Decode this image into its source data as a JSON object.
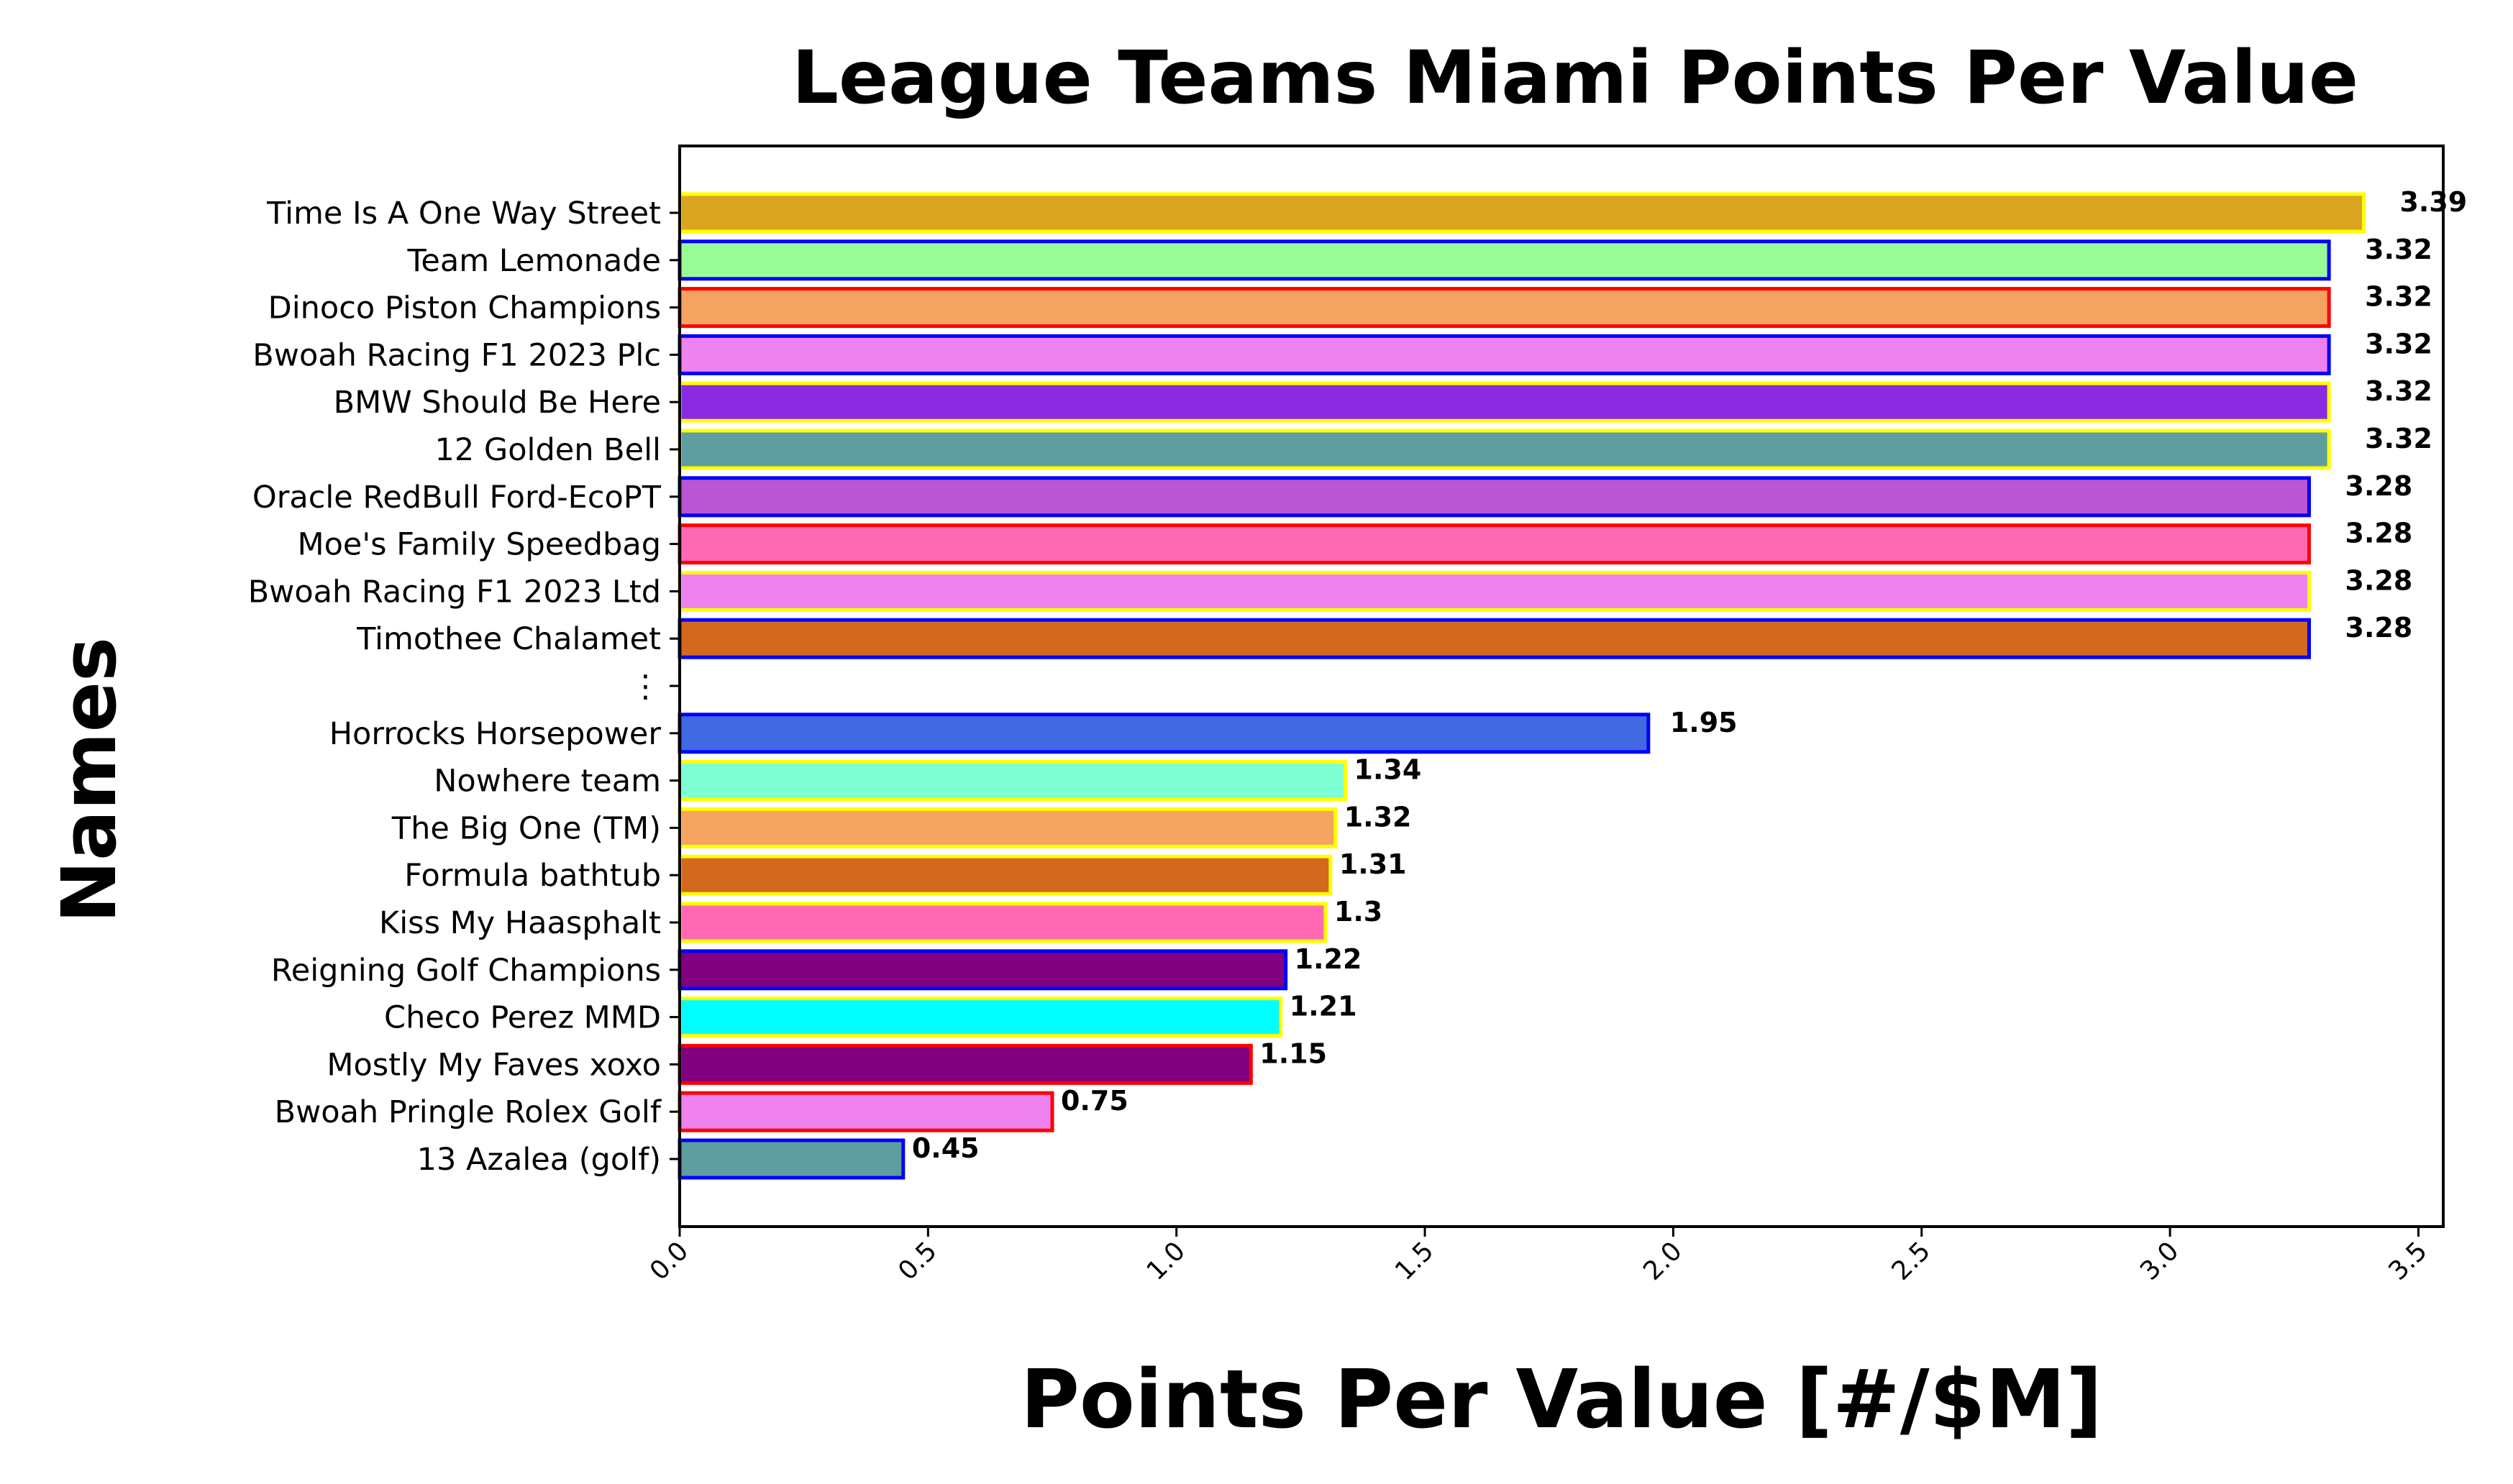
{
  "chart_data": {
    "type": "bar",
    "orientation": "horizontal",
    "title": "League Teams Miami Points Per Value",
    "xlabel": "Points Per Value [#/$M]",
    "ylabel": "Names",
    "xlim": [
      0,
      3.55
    ],
    "xticks": [
      "0.0",
      "0.5",
      "1.0",
      "1.5",
      "2.0",
      "2.5",
      "3.0",
      "3.5"
    ],
    "xtick_values": [
      0,
      0.5,
      1.0,
      1.5,
      2.0,
      2.5,
      3.0,
      3.5
    ],
    "grid": false,
    "legend": "none",
    "bars": [
      {
        "name": "Time Is A One Way Street",
        "value": 3.39,
        "label": "3.39",
        "fill": "#DAA520",
        "edge": "#FFFF00"
      },
      {
        "name": "Team Lemonade",
        "value": 3.32,
        "label": "3.32",
        "fill": "#98FB98",
        "edge": "#0000FF"
      },
      {
        "name": "Dinoco Piston Champions",
        "value": 3.32,
        "label": "3.32",
        "fill": "#F4A460",
        "edge": "#FF0000"
      },
      {
        "name": "Bwoah Racing F1 2023 Plc",
        "value": 3.32,
        "label": "3.32",
        "fill": "#EE82EE",
        "edge": "#0000FF"
      },
      {
        "name": "BMW Should Be Here",
        "value": 3.32,
        "label": "3.32",
        "fill": "#8A2BE2",
        "edge": "#FFFF00"
      },
      {
        "name": "12 Golden Bell",
        "value": 3.32,
        "label": "3.32",
        "fill": "#5F9EA0",
        "edge": "#FFFF00"
      },
      {
        "name": "Oracle RedBull Ford-EcoPT",
        "value": 3.28,
        "label": "3.28",
        "fill": "#BA55D3",
        "edge": "#0000FF"
      },
      {
        "name": "Moe's Family Speedbag",
        "value": 3.28,
        "label": "3.28",
        "fill": "#FF69B4",
        "edge": "#FF0000"
      },
      {
        "name": "Bwoah Racing F1 2023 Ltd",
        "value": 3.28,
        "label": "3.28",
        "fill": "#EE82EE",
        "edge": "#FFFF00"
      },
      {
        "name": "Timothee Chalamet",
        "value": 3.28,
        "label": "3.28",
        "fill": "#D2691E",
        "edge": "#0000FF"
      },
      {
        "name": "⋮",
        "value": null,
        "label": "",
        "fill": "",
        "edge": ""
      },
      {
        "name": "Horrocks Horsepower",
        "value": 1.95,
        "label": "1.95",
        "fill": "#4169E1",
        "edge": "#0000FF"
      },
      {
        "name": "Nowhere team",
        "value": 1.34,
        "label": "1.34",
        "fill": "#7FFFD4",
        "edge": "#FFFF00"
      },
      {
        "name": "The Big One (TM)",
        "value": 1.32,
        "label": "1.32",
        "fill": "#F4A460",
        "edge": "#FFFF00"
      },
      {
        "name": "Formula bathtub",
        "value": 1.31,
        "label": "1.31",
        "fill": "#D2691E",
        "edge": "#FFFF00"
      },
      {
        "name": "Kiss My Haasphalt",
        "value": 1.3,
        "label": "1.3",
        "fill": "#FF69B4",
        "edge": "#FFFF00"
      },
      {
        "name": "Reigning Golf Champions",
        "value": 1.22,
        "label": "1.22",
        "fill": "#800080",
        "edge": "#0000FF"
      },
      {
        "name": "Checo Perez MMD",
        "value": 1.21,
        "label": "1.21",
        "fill": "#00FFFF",
        "edge": "#FFFF00"
      },
      {
        "name": "Mostly My Faves xoxo",
        "value": 1.15,
        "label": "1.15",
        "fill": "#800080",
        "edge": "#FF0000"
      },
      {
        "name": "Bwoah Pringle Rolex Golf",
        "value": 0.75,
        "label": "0.75",
        "fill": "#EE82EE",
        "edge": "#FF0000"
      },
      {
        "name": "13 Azalea (golf)",
        "value": 0.45,
        "label": "0.45",
        "fill": "#5F9EA0",
        "edge": "#0000FF"
      }
    ]
  }
}
